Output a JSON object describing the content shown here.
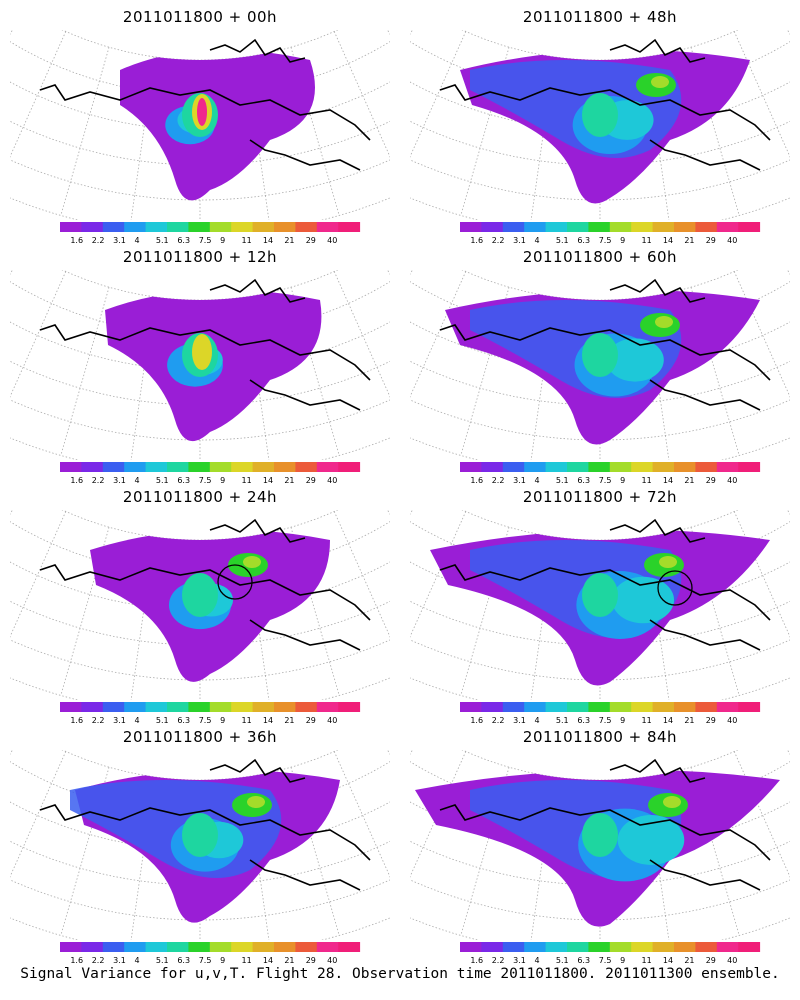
{
  "panels": [
    {
      "title": "2011011800 + 00h",
      "stage": 0,
      "circle": false
    },
    {
      "title": "2011011800 + 48h",
      "stage": 4,
      "circle": false
    },
    {
      "title": "2011011800 + 12h",
      "stage": 1,
      "circle": false
    },
    {
      "title": "2011011800 + 60h",
      "stage": 5,
      "circle": false
    },
    {
      "title": "2011011800 + 24h",
      "stage": 2,
      "circle": true
    },
    {
      "title": "2011011800 + 72h",
      "stage": 6,
      "circle": true
    },
    {
      "title": "2011011800 + 36h",
      "stage": 3,
      "circle": false
    },
    {
      "title": "2011011800 + 84h",
      "stage": 7,
      "circle": false
    }
  ],
  "colorbar": {
    "labels": [
      "1.6",
      "2.2",
      "3.1",
      "4",
      "5.1",
      "6.3",
      "7.5",
      "9",
      "11",
      "14",
      "21",
      "29",
      "40"
    ],
    "colors": [
      "#9a1ed6",
      "#7a28e8",
      "#3a5ef0",
      "#1f9cf0",
      "#1ec8d8",
      "#1ed6a0",
      "#2ad22a",
      "#a4dc2a",
      "#dcd628",
      "#e0b028",
      "#e8902a",
      "#ec5a3a",
      "#f0288c",
      "#f01e78"
    ]
  },
  "footer": "Signal Variance for u,v,T. Flight 28. Observation time 2011011800. 2011011300 ensemble."
}
